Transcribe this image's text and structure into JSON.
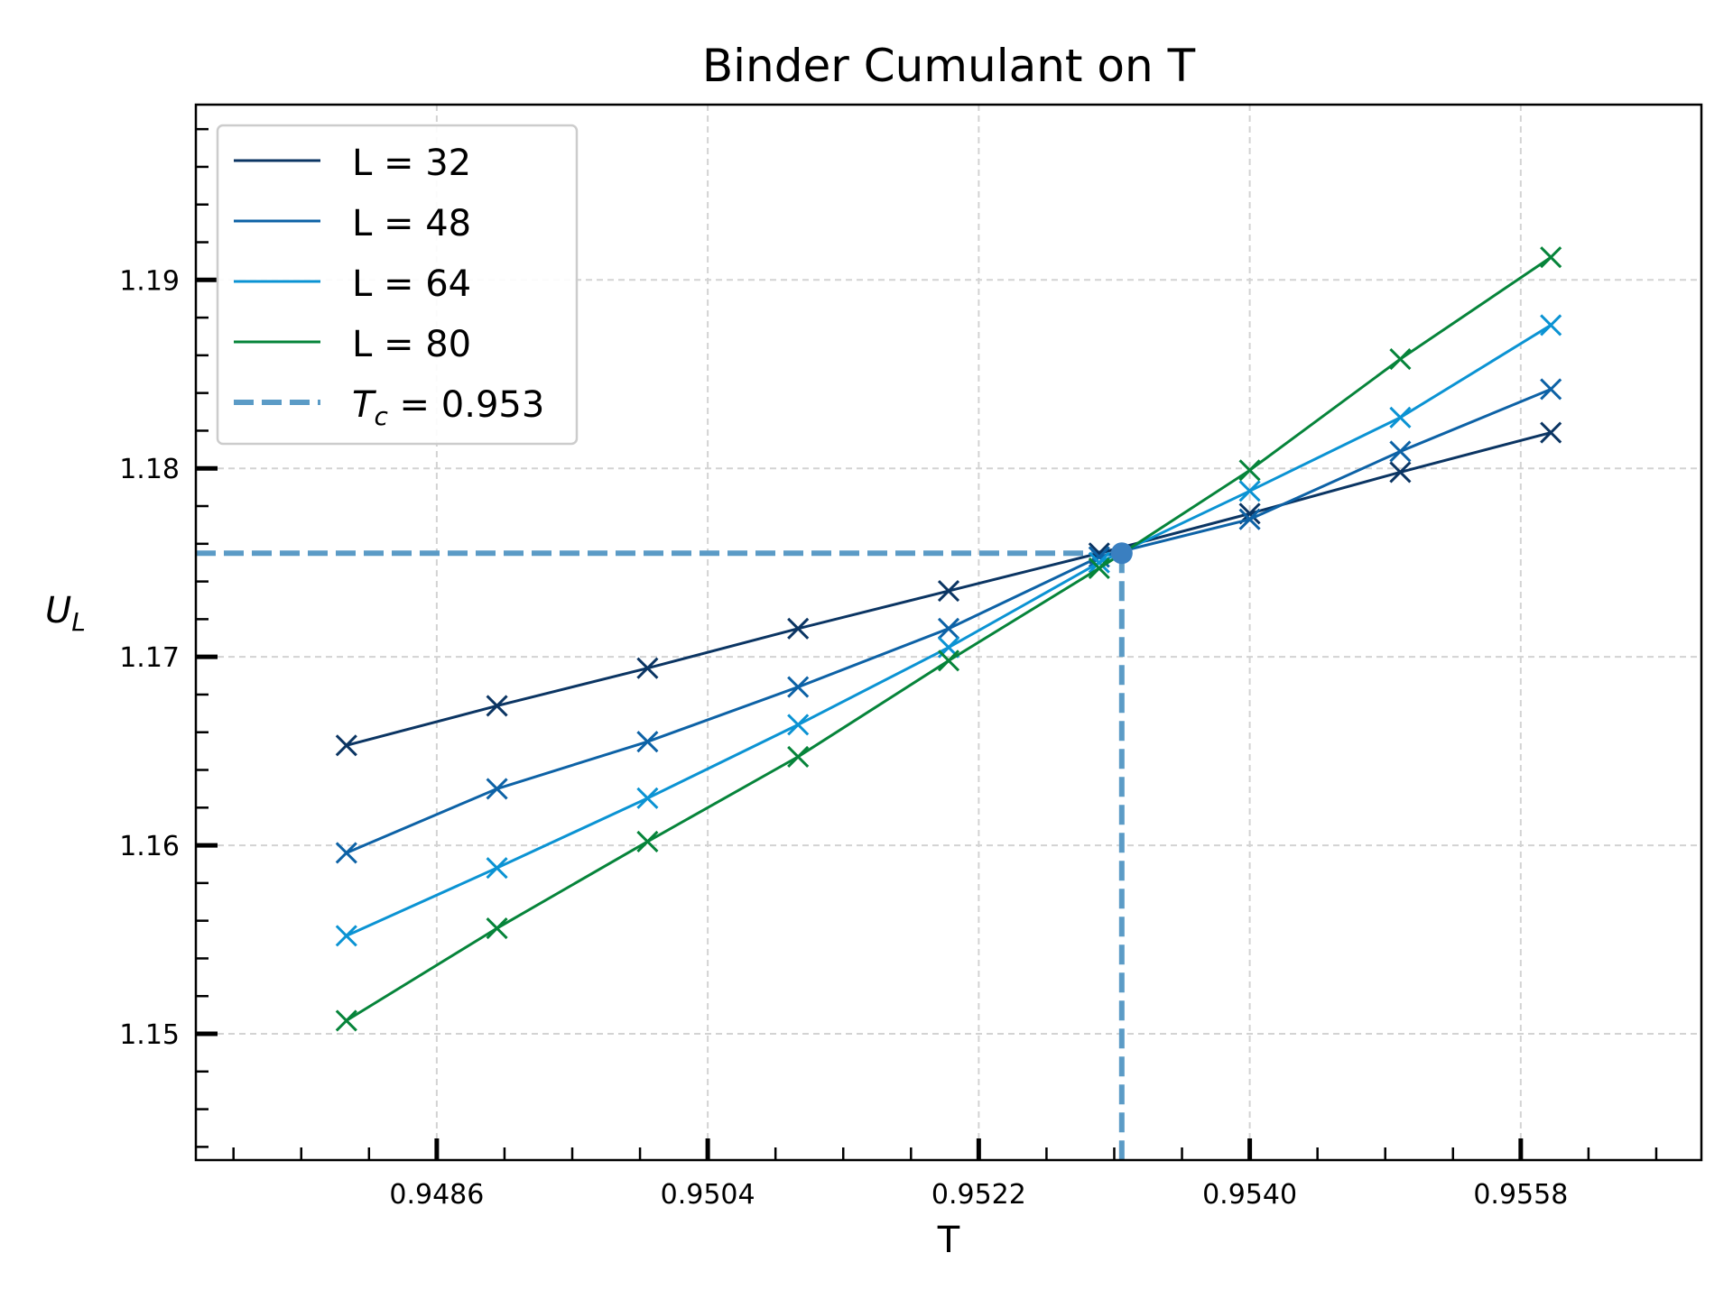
{
  "chart_data": {
    "type": "line",
    "title": "Binder Cumulant on T",
    "xlabel": "T",
    "ylabel_main": "U",
    "ylabel_sub": "L",
    "xlim": [
      0.947,
      0.957
    ],
    "ylim": [
      1.1433,
      1.1993
    ],
    "xticks": [
      0.9486,
      0.9504,
      0.9522,
      0.954,
      0.9558
    ],
    "xtick_labels": [
      "0.9486",
      "0.9504",
      "0.9522",
      "0.9540",
      "0.9558"
    ],
    "yticks": [
      1.15,
      1.16,
      1.17,
      1.18,
      1.19
    ],
    "ytick_labels": [
      "1.15",
      "1.16",
      "1.17",
      "1.18",
      "1.19"
    ],
    "grid": true,
    "legend_position": "top-left",
    "x": [
      0.948,
      0.949,
      0.95,
      0.951,
      0.952,
      0.953,
      0.954,
      0.955,
      0.956
    ],
    "series": [
      {
        "name": "L = 32",
        "color": "#0b3563",
        "values": [
          1.1653,
          1.1674,
          1.1694,
          1.1715,
          1.1735,
          1.1755,
          1.1776,
          1.1798,
          1.1819
        ]
      },
      {
        "name": "L = 48",
        "color": "#0d62a6",
        "values": [
          1.1596,
          1.163,
          1.1655,
          1.1684,
          1.1715,
          1.1753,
          1.1773,
          1.1809,
          1.1842
        ]
      },
      {
        "name": "L = 64",
        "color": "#0b93d3",
        "values": [
          1.1552,
          1.1588,
          1.1625,
          1.1664,
          1.1705,
          1.175,
          1.1788,
          1.1827,
          1.1876
        ]
      },
      {
        "name": "L = 80",
        "color": "#06843a",
        "values": [
          1.1507,
          1.1556,
          1.1602,
          1.1647,
          1.1698,
          1.1747,
          1.1799,
          1.1858,
          1.1912
        ]
      }
    ],
    "critical": {
      "legend_prefix": "T",
      "legend_sub": "c",
      "legend_value": " = 0.953",
      "color": "#5b9bc6",
      "x": 0.95315,
      "y": 1.1755
    }
  }
}
